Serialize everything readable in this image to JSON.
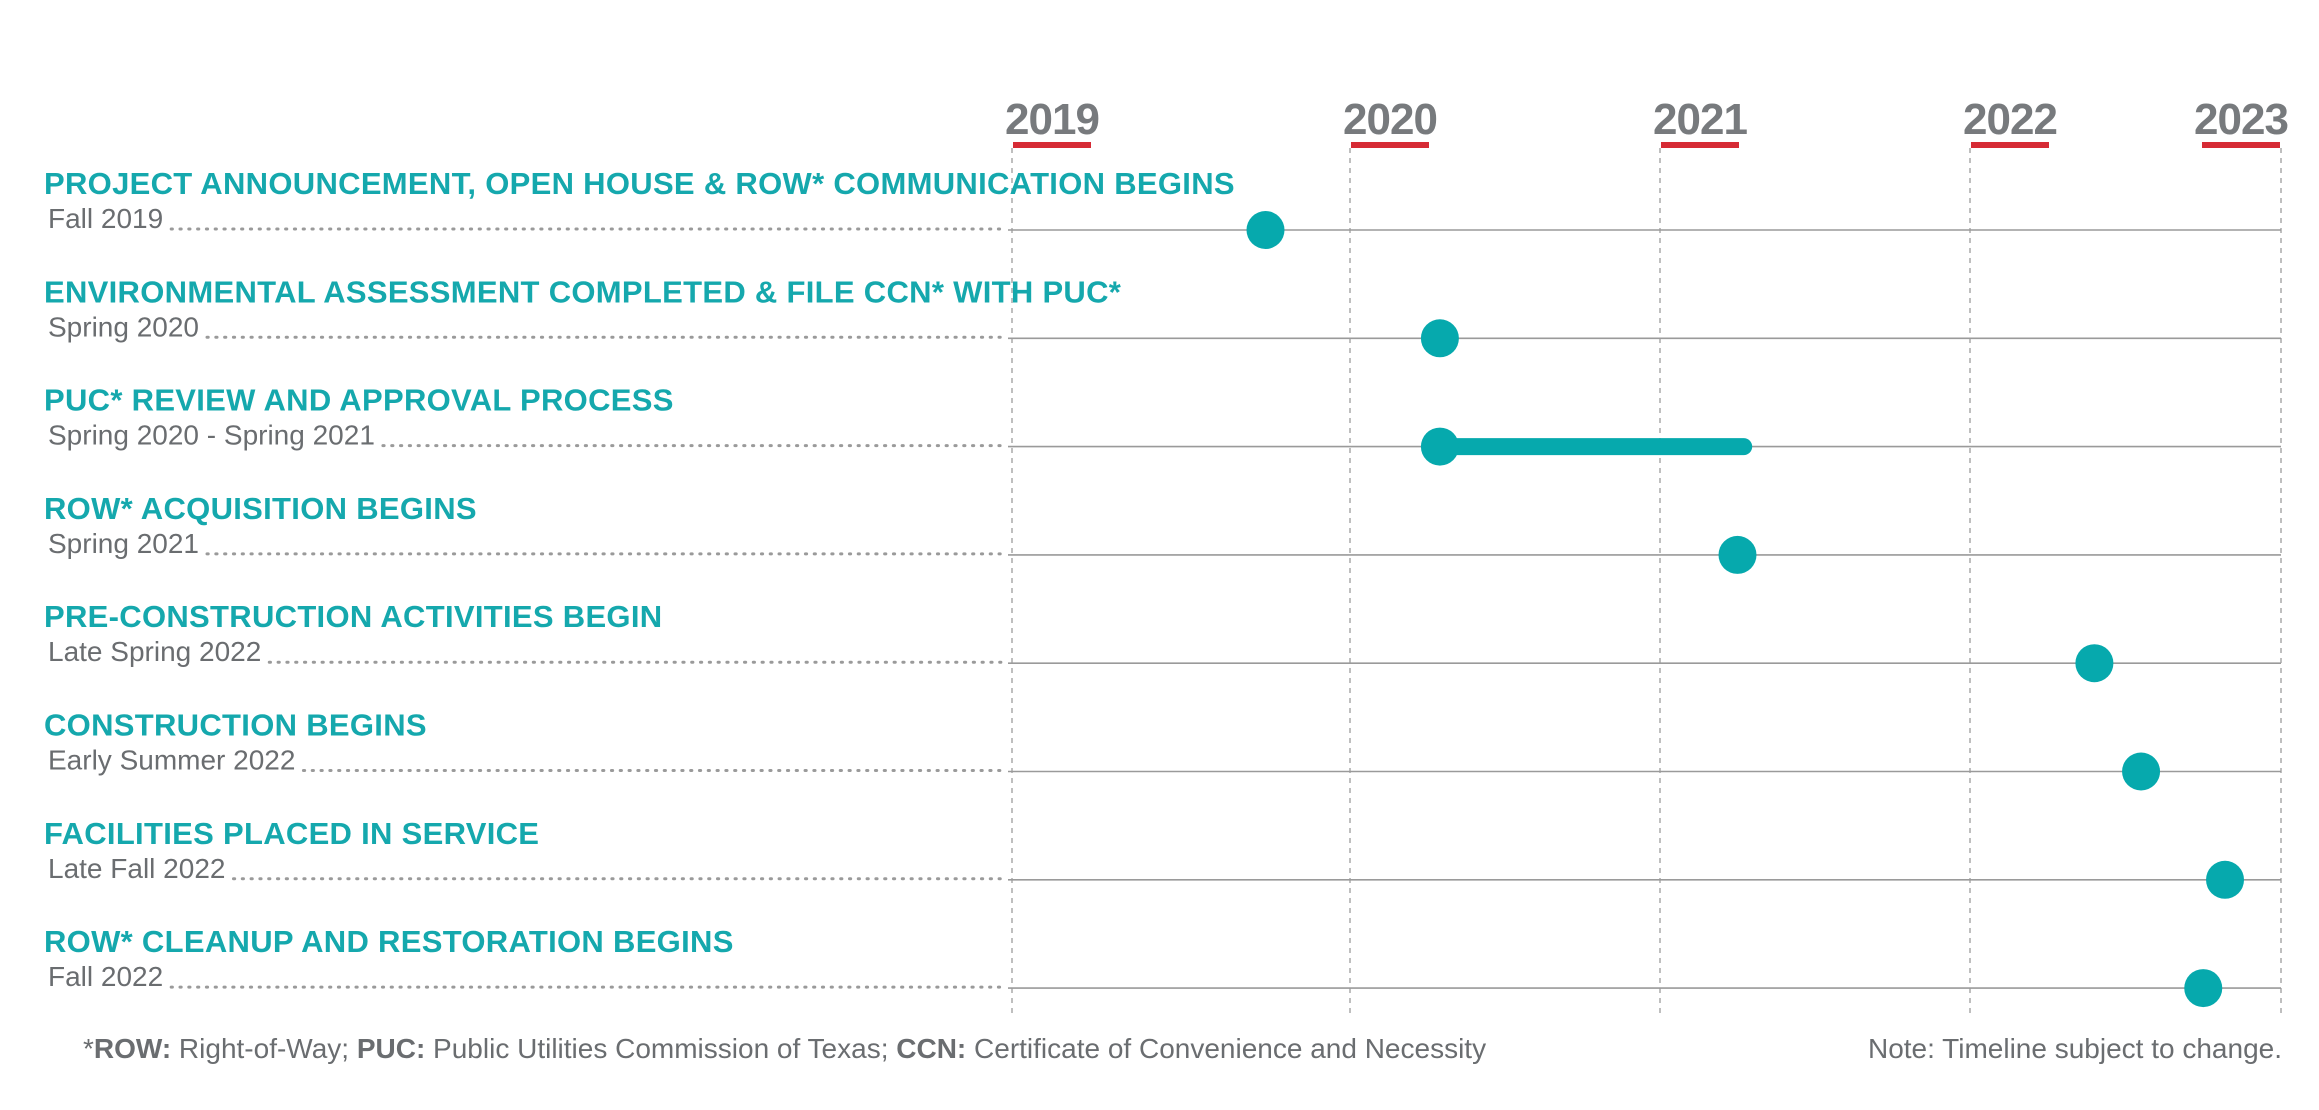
{
  "chart_data": {
    "type": "timeline",
    "years": [
      "2019",
      "2020",
      "2021",
      "2022",
      "2023"
    ],
    "milestones": [
      {
        "title": "PROJECT ANNOUNCEMENT, OPEN HOUSE & ROW* COMMUNICATION BEGINS",
        "date": "Fall 2019",
        "start": 2019.75
      },
      {
        "title": "ENVIRONMENTAL ASSESSMENT COMPLETED & FILE CCN* WITH PUC*",
        "date": "Spring 2020",
        "start": 2020.29
      },
      {
        "title": "PUC* REVIEW AND APPROVAL PROCESS",
        "date": "Spring 2020 - Spring 2021",
        "start": 2020.29,
        "end": 2021.27
      },
      {
        "title": "ROW* ACQUISITION BEGINS",
        "date": "Spring 2021",
        "start": 2021.25
      },
      {
        "title": "PRE-CONSTRUCTION ACTIVITIES BEGIN",
        "date": "Late Spring 2022",
        "start": 2022.4
      },
      {
        "title": "CONSTRUCTION BEGINS",
        "date": "Early Summer 2022",
        "start": 2022.55
      },
      {
        "title": "FACILITIES PLACED IN SERVICE",
        "date": "Late Fall 2022",
        "start": 2022.82
      },
      {
        "title": "ROW* CLEANUP AND RESTORATION BEGINS",
        "date": "Fall 2022",
        "start": 2022.75
      }
    ],
    "colors": {
      "accent": "#06a9ad",
      "year_underline": "#d62b35",
      "text_gray": "#6a6d70"
    }
  },
  "footnote": {
    "prefix": "*",
    "row_key": "ROW:",
    "row_text": " Right-of-Way; ",
    "puc_key": "PUC:",
    "puc_text": " Public Utilities Commission of Texas; ",
    "ccn_key": "CCN:",
    "ccn_text": " Certificate of Convenience and Necessity"
  },
  "note": "Note: Timeline subject to change."
}
